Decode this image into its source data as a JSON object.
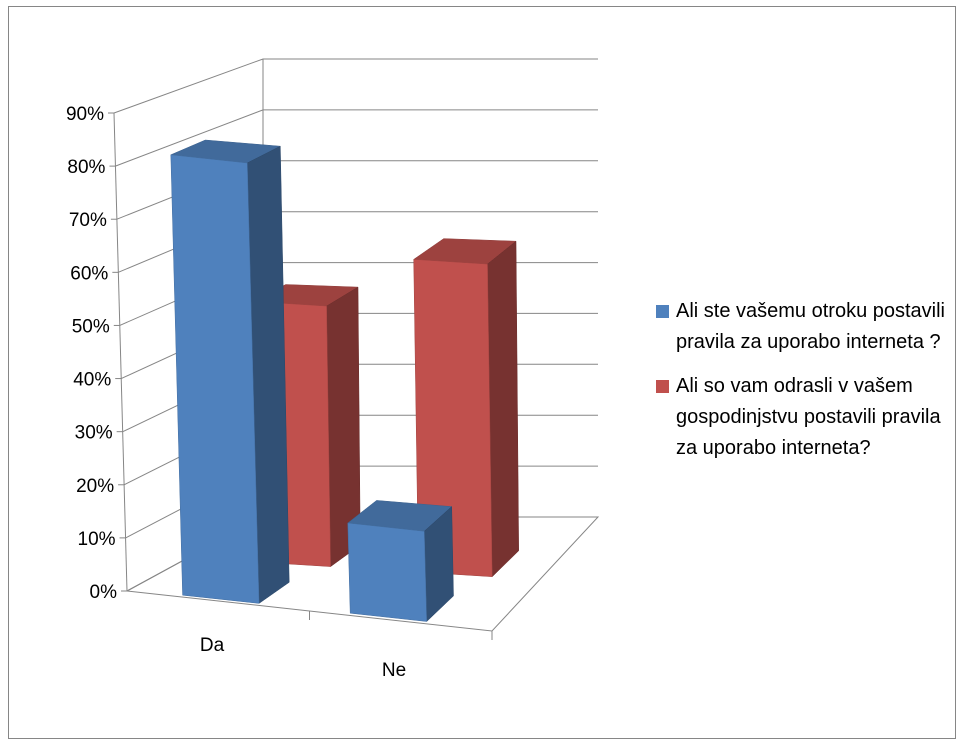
{
  "chart_data": {
    "type": "bar",
    "subtype": "3d-clustered-column",
    "categories": [
      "Da",
      "Ne"
    ],
    "series": [
      {
        "name": "Ali ste vašemu otroku postavili pravila za uporabo interneta ?",
        "color": "#4F81BD",
        "values": [
          0.83,
          0.17
        ]
      },
      {
        "name": "Ali so vam odrasli v vašem gospodinjstvu postavili pravila za uporabo interneta?",
        "color": "#C0504D",
        "values": [
          0.5,
          0.6
        ]
      }
    ],
    "yticks": [
      "0%",
      "10%",
      "20%",
      "30%",
      "40%",
      "50%",
      "60%",
      "70%",
      "80%",
      "90%"
    ],
    "ylim": [
      0,
      0.9
    ],
    "grid": true,
    "legend_position": "right"
  }
}
